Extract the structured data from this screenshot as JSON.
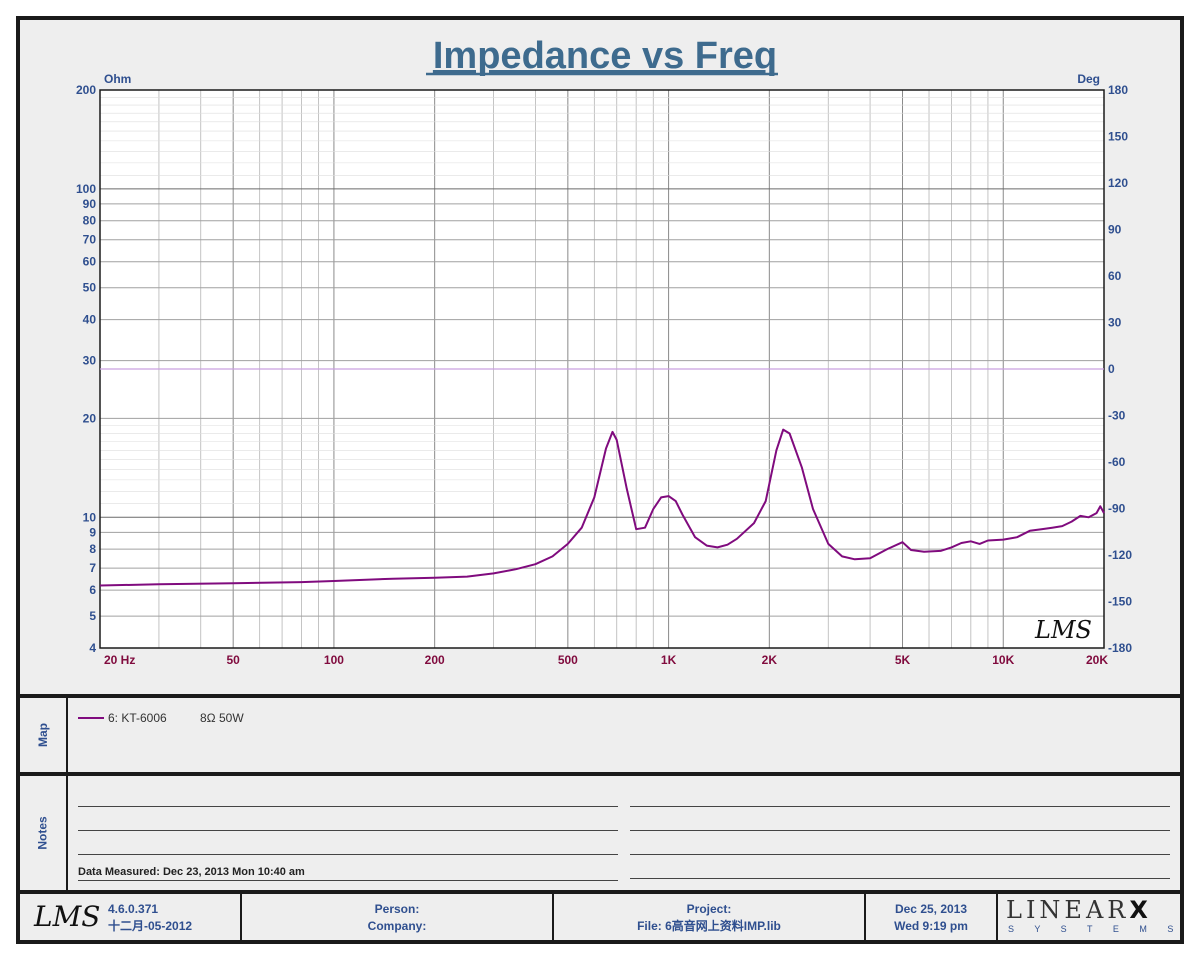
{
  "chart_data": {
    "type": "line",
    "title": "Impedance vs Freq",
    "left_axis_unit": "Ohm",
    "right_axis_unit": "Deg",
    "x_scale": "log",
    "y_scale": "log",
    "xlim": [
      20,
      20000
    ],
    "ylim": [
      4,
      200
    ],
    "y2lim": [
      -180,
      180
    ],
    "grid": true,
    "x_ticks": [
      {
        "v": 20,
        "label": "20  Hz"
      },
      {
        "v": 50,
        "label": "50"
      },
      {
        "v": 100,
        "label": "100"
      },
      {
        "v": 200,
        "label": "200"
      },
      {
        "v": 500,
        "label": "500"
      },
      {
        "v": 1000,
        "label": "1K"
      },
      {
        "v": 2000,
        "label": "2K"
      },
      {
        "v": 5000,
        "label": "5K"
      },
      {
        "v": 10000,
        "label": "10K"
      },
      {
        "v": 20000,
        "label": "20K"
      }
    ],
    "y_ticks": [
      {
        "v": 4,
        "label": "4"
      },
      {
        "v": 5,
        "label": "5"
      },
      {
        "v": 6,
        "label": "6"
      },
      {
        "v": 7,
        "label": "7"
      },
      {
        "v": 8,
        "label": "8"
      },
      {
        "v": 9,
        "label": "9"
      },
      {
        "v": 10,
        "label": "10"
      },
      {
        "v": 20,
        "label": "20"
      },
      {
        "v": 30,
        "label": "30"
      },
      {
        "v": 40,
        "label": "40"
      },
      {
        "v": 50,
        "label": "50"
      },
      {
        "v": 60,
        "label": "60"
      },
      {
        "v": 70,
        "label": "70"
      },
      {
        "v": 80,
        "label": "80"
      },
      {
        "v": 90,
        "label": "90"
      },
      {
        "v": 100,
        "label": "100"
      },
      {
        "v": 200,
        "label": "200"
      }
    ],
    "y2_ticks": [
      {
        "v": 180,
        "label": "180"
      },
      {
        "v": 150,
        "label": "150"
      },
      {
        "v": 120,
        "label": "120"
      },
      {
        "v": 90,
        "label": "90"
      },
      {
        "v": 60,
        "label": "60"
      },
      {
        "v": 30,
        "label": "30"
      },
      {
        "v": 0,
        "label": "0"
      },
      {
        "v": -30,
        "label": "-30"
      },
      {
        "v": -60,
        "label": "-60"
      },
      {
        "v": -90,
        "label": "-90"
      },
      {
        "v": -120,
        "label": "-120"
      },
      {
        "v": -150,
        "label": "-150"
      },
      {
        "v": -180,
        "label": "-180"
      }
    ],
    "series": [
      {
        "name": "6: KT-6006",
        "color": "#800b7e",
        "axis": "left",
        "points": [
          [
            20,
            6.2
          ],
          [
            30,
            6.25
          ],
          [
            50,
            6.3
          ],
          [
            80,
            6.35
          ],
          [
            100,
            6.4
          ],
          [
            150,
            6.5
          ],
          [
            200,
            6.55
          ],
          [
            250,
            6.6
          ],
          [
            300,
            6.75
          ],
          [
            350,
            6.95
          ],
          [
            400,
            7.2
          ],
          [
            450,
            7.6
          ],
          [
            500,
            8.3
          ],
          [
            550,
            9.3
          ],
          [
            600,
            11.5
          ],
          [
            650,
            16.2
          ],
          [
            680,
            18.2
          ],
          [
            700,
            17.2
          ],
          [
            750,
            12.2
          ],
          [
            800,
            9.2
          ],
          [
            850,
            9.3
          ],
          [
            900,
            10.6
          ],
          [
            950,
            11.5
          ],
          [
            1000,
            11.6
          ],
          [
            1050,
            11.2
          ],
          [
            1100,
            10.2
          ],
          [
            1200,
            8.7
          ],
          [
            1300,
            8.2
          ],
          [
            1400,
            8.1
          ],
          [
            1500,
            8.25
          ],
          [
            1600,
            8.6
          ],
          [
            1800,
            9.6
          ],
          [
            1950,
            11.2
          ],
          [
            2100,
            16.0
          ],
          [
            2200,
            18.5
          ],
          [
            2300,
            18.0
          ],
          [
            2500,
            14.2
          ],
          [
            2700,
            10.6
          ],
          [
            3000,
            8.3
          ],
          [
            3300,
            7.6
          ],
          [
            3600,
            7.45
          ],
          [
            4000,
            7.5
          ],
          [
            4500,
            8.0
          ],
          [
            5000,
            8.4
          ],
          [
            5300,
            7.95
          ],
          [
            5800,
            7.85
          ],
          [
            6500,
            7.9
          ],
          [
            7000,
            8.1
          ],
          [
            7500,
            8.35
          ],
          [
            8000,
            8.45
          ],
          [
            8500,
            8.3
          ],
          [
            9000,
            8.5
          ],
          [
            10000,
            8.55
          ],
          [
            11000,
            8.7
          ],
          [
            12000,
            9.1
          ],
          [
            13000,
            9.2
          ],
          [
            14000,
            9.3
          ],
          [
            15000,
            9.4
          ],
          [
            16000,
            9.7
          ],
          [
            17000,
            10.1
          ],
          [
            18000,
            10.0
          ],
          [
            19000,
            10.3
          ],
          [
            19500,
            10.8
          ],
          [
            20000,
            10.3
          ]
        ]
      },
      {
        "name": "phase",
        "color": "#c9a0e0",
        "axis": "right",
        "points": [
          [
            20,
            0
          ],
          [
            20000,
            0
          ]
        ]
      }
    ],
    "watermark": "LMS"
  },
  "legend": {
    "series_label": "6: KT-6006",
    "spec": "8Ω  50W"
  },
  "panels": {
    "map_label": "Map",
    "notes_label": "Notes"
  },
  "notes": {
    "measured": "Data Measured: Dec 23, 2013  Mon 10:40 am"
  },
  "footer": {
    "logo": "LMS",
    "version": "4.6.0.371",
    "build_date": "十二月-05-2012",
    "person_label": "Person:",
    "company_label": "Company:",
    "project_label": "Project:",
    "file_label": "File: 6高音网上资料IMP.lib",
    "date": "Dec 25, 2013",
    "time": "Wed  9:19 pm",
    "brand_top": "LINEAR",
    "brand_x": "X",
    "brand_bottom": "S Y S T E M S"
  }
}
